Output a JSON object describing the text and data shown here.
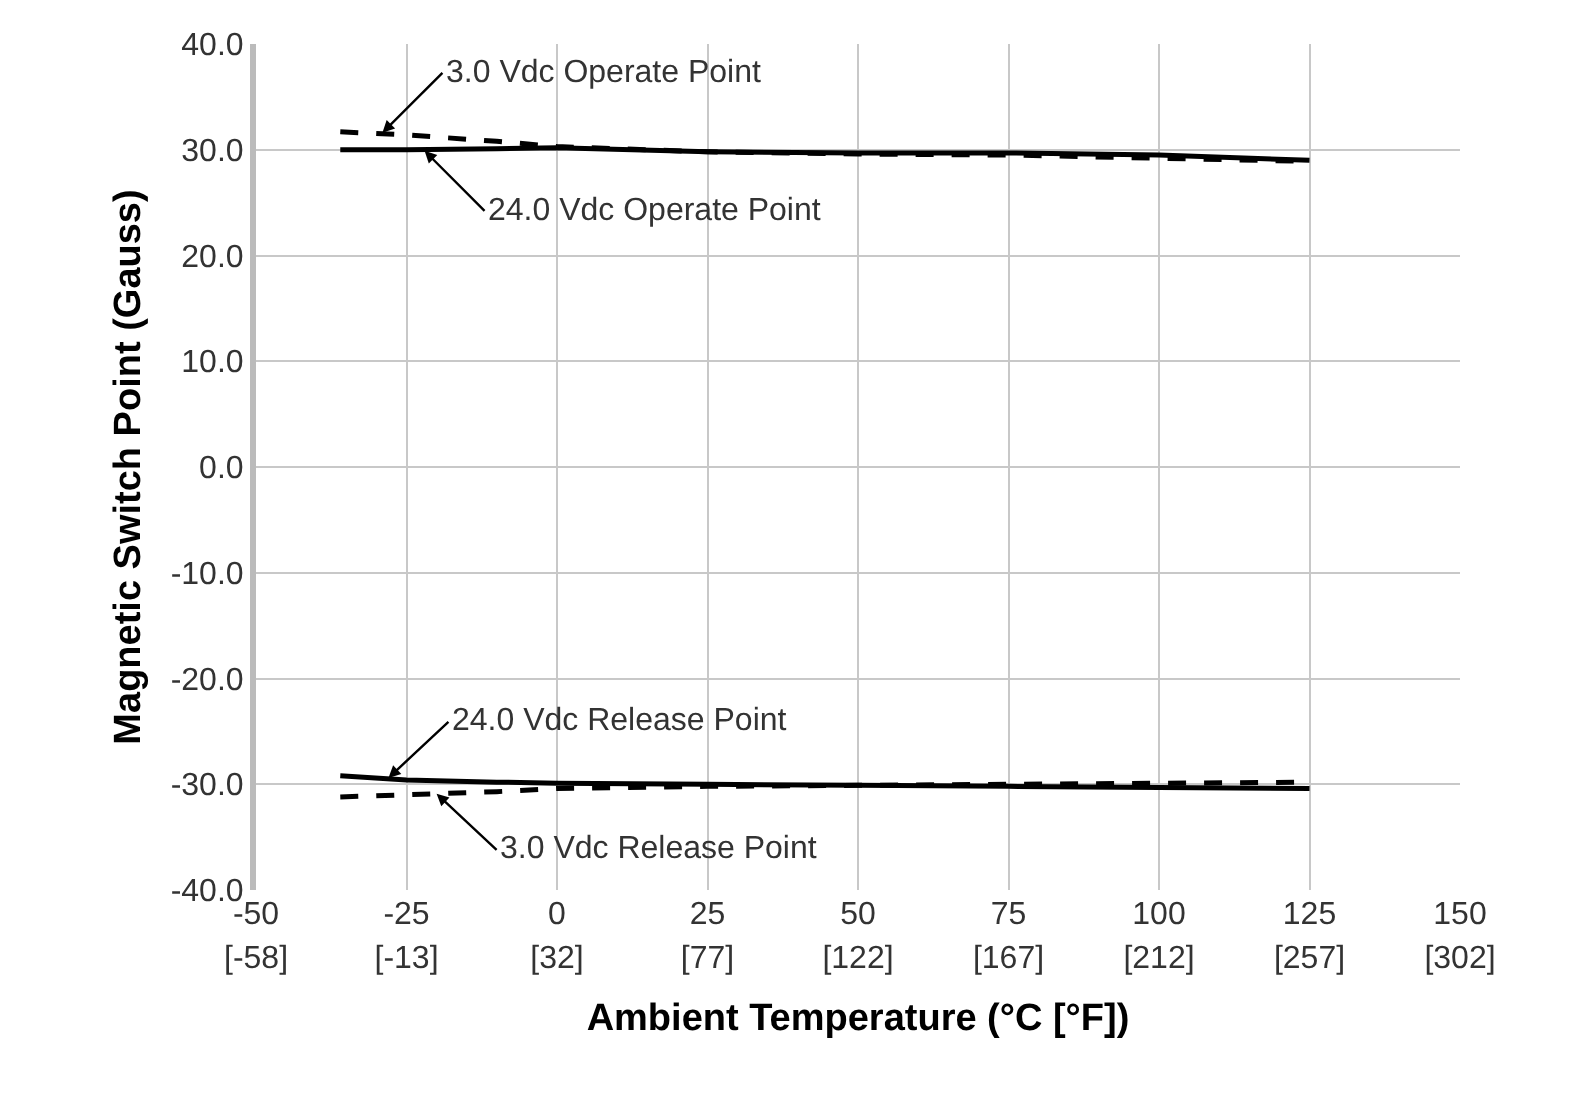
{
  "chart_data": {
    "type": "line",
    "xlabel": "Ambient Temperature (°C [°F])",
    "ylabel": "Magnetic Switch Point (Gauss)",
    "x": [
      -36,
      -25,
      -10,
      0,
      25,
      50,
      75,
      100,
      125
    ],
    "series": [
      {
        "color": "#000000",
        "line_style": "dashed",
        "values": [
          31.7,
          31.4,
          30.8,
          30.3,
          29.8,
          29.6,
          29.5,
          29.2,
          28.9
        ]
      },
      {
        "color": "#000000",
        "line_style": "solid",
        "values": [
          30.0,
          30.0,
          30.1,
          30.2,
          29.8,
          29.7,
          29.7,
          29.5,
          29.0
        ]
      },
      {
        "color": "#000000",
        "line_style": "solid",
        "values": [
          -29.2,
          -29.6,
          -29.8,
          -29.9,
          -30.0,
          -30.1,
          -30.2,
          -30.3,
          -30.4
        ]
      },
      {
        "color": "#000000",
        "line_style": "dashed",
        "values": [
          -31.2,
          -31.0,
          -30.7,
          -30.4,
          -30.2,
          -30.1,
          -30.0,
          -29.9,
          -29.8
        ]
      }
    ],
    "annotations": [
      {
        "text": "3.0 Vdc Operate Point",
        "x": -29,
        "y": 31.6
      },
      {
        "text": "24.0 Vdc Operate Point",
        "x": -22,
        "y": 29.9
      },
      {
        "text": "24.0 Vdc Release Point",
        "x": -28,
        "y": -29.4
      },
      {
        "text": "3.0 Vdc Release Point",
        "x": -20,
        "y": -30.9
      }
    ],
    "xlim": [
      -50,
      150
    ],
    "xticks": [
      -50,
      -25,
      0,
      25,
      50,
      75,
      100,
      125,
      150
    ],
    "x2lim": [
      -58,
      302
    ],
    "x2ticks": [
      {
        "value": -58,
        "label": "[-58]"
      },
      {
        "value": -13,
        "label": "[-13]"
      },
      {
        "value": 32,
        "label": "[32]"
      },
      {
        "value": 77,
        "label": "[77]"
      },
      {
        "value": 122,
        "label": "[122]"
      },
      {
        "value": 167,
        "label": "[167]"
      },
      {
        "value": 212,
        "label": "[212]"
      },
      {
        "value": 257,
        "label": "[257]"
      },
      {
        "value": 302,
        "label": "[302]"
      }
    ],
    "ylim": [
      -40,
      40
    ],
    "yticks": [
      {
        "value": -40,
        "label": "-40.0"
      },
      {
        "value": -30,
        "label": "-30.0"
      },
      {
        "value": -20,
        "label": "-20.0"
      },
      {
        "value": -10,
        "label": "-10.0"
      },
      {
        "value": 0,
        "label": "0.0"
      },
      {
        "value": 10,
        "label": "10.0"
      },
      {
        "value": 20,
        "label": "20.0"
      },
      {
        "value": 30,
        "label": "30.0"
      },
      {
        "value": 40,
        "label": "40.0"
      }
    ],
    "grid": true,
    "marker": "none"
  }
}
